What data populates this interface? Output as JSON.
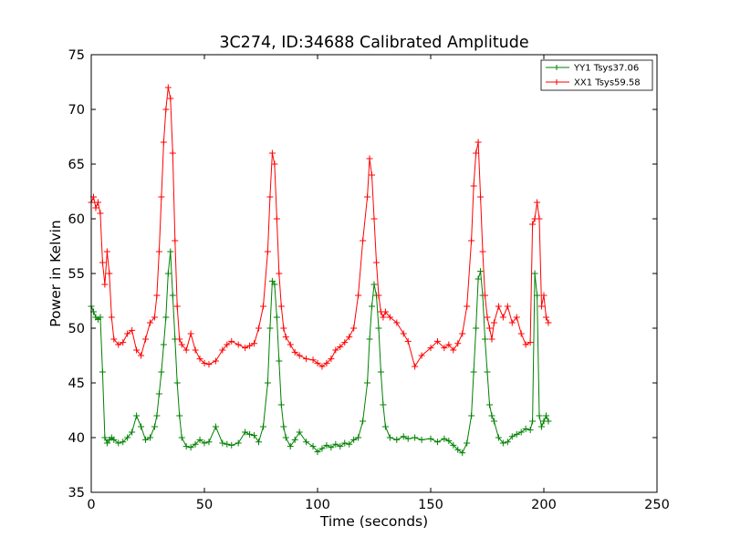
{
  "chart_data": {
    "type": "line",
    "title": "3C274, ID:34688 Calibrated Amplitude",
    "xlabel": "Time (seconds)",
    "ylabel": "Power in Kelvin",
    "xlim": [
      0,
      250
    ],
    "ylim": [
      35,
      75
    ],
    "xticks": [
      "0",
      "50",
      "100",
      "150",
      "200",
      "250"
    ],
    "yticks": [
      "35",
      "40",
      "45",
      "50",
      "55",
      "60",
      "65",
      "70",
      "75"
    ],
    "grid": false,
    "legend_position": "top-right",
    "marker": "+",
    "series": [
      {
        "name": "YY1 Tsys37.06",
        "color": "#008000",
        "x": [
          0,
          1,
          2,
          3,
          4,
          5,
          6,
          7,
          8,
          9,
          10,
          12,
          14,
          16,
          18,
          20,
          22,
          24,
          26,
          28,
          29,
          30,
          31,
          32,
          33,
          34,
          35,
          36,
          37,
          38,
          39,
          40,
          42,
          44,
          46,
          48,
          50,
          52,
          55,
          58,
          60,
          62,
          65,
          68,
          70,
          72,
          74,
          76,
          78,
          79,
          80,
          81,
          82,
          83,
          84,
          85,
          86,
          88,
          90,
          92,
          95,
          98,
          100,
          102,
          104,
          106,
          108,
          110,
          112,
          114,
          116,
          118,
          120,
          122,
          123,
          124,
          125,
          126,
          127,
          128,
          129,
          130,
          132,
          135,
          138,
          140,
          143,
          146,
          150,
          153,
          156,
          158,
          160,
          162,
          164,
          166,
          168,
          169,
          170,
          171,
          172,
          173,
          174,
          175,
          176,
          177,
          178,
          180,
          182,
          184,
          186,
          188,
          190,
          192,
          194,
          195,
          196,
          197,
          198,
          199,
          200,
          201,
          202
        ],
        "y": [
          52,
          51.5,
          51,
          50.8,
          51,
          46,
          40,
          39.5,
          39.8,
          40,
          39.8,
          39.5,
          39.6,
          40,
          40.5,
          42,
          41,
          39.8,
          40,
          41,
          42,
          44,
          46,
          48.5,
          51,
          55,
          57,
          53,
          49,
          45,
          42,
          40,
          39.2,
          39.1,
          39.4,
          39.8,
          39.5,
          39.6,
          41,
          39.5,
          39.4,
          39.3,
          39.5,
          40.5,
          40.3,
          40.2,
          39.6,
          41,
          45,
          50,
          54.3,
          54,
          51,
          47,
          43,
          41,
          40,
          39.2,
          39.8,
          40.5,
          39.6,
          39.2,
          38.7,
          39,
          39.3,
          39.1,
          39.4,
          39.2,
          39.5,
          39.4,
          39.8,
          40,
          41.5,
          45,
          49,
          52,
          54,
          53,
          50,
          46,
          43,
          41,
          40,
          39.8,
          40.1,
          39.9,
          40,
          39.8,
          39.9,
          39.6,
          39.9,
          39.7,
          39.3,
          38.9,
          38.6,
          39.5,
          42,
          46,
          50,
          54.5,
          55.2,
          53,
          49,
          46,
          43,
          42,
          41.5,
          40,
          39.5,
          39.6,
          40.1,
          40.3,
          40.5,
          40.8,
          40.7,
          41.5,
          55,
          53,
          42,
          41,
          41.5,
          42,
          41.5
        ]
      },
      {
        "name": "XX1 Tsys59.58",
        "color": "#ff0000",
        "x": [
          0,
          1,
          2,
          3,
          4,
          5,
          6,
          7,
          8,
          9,
          10,
          12,
          14,
          16,
          18,
          20,
          22,
          24,
          26,
          28,
          29,
          30,
          31,
          32,
          33,
          34,
          35,
          36,
          37,
          38,
          39,
          40,
          42,
          44,
          46,
          48,
          50,
          52,
          55,
          58,
          60,
          62,
          65,
          68,
          70,
          72,
          74,
          76,
          78,
          79,
          80,
          81,
          82,
          83,
          84,
          85,
          86,
          88,
          90,
          92,
          95,
          98,
          100,
          102,
          104,
          106,
          108,
          110,
          112,
          114,
          116,
          118,
          120,
          122,
          123,
          124,
          125,
          126,
          127,
          128,
          129,
          130,
          132,
          135,
          138,
          140,
          143,
          146,
          150,
          153,
          156,
          158,
          160,
          162,
          164,
          166,
          168,
          169,
          170,
          171,
          172,
          173,
          174,
          175,
          176,
          177,
          178,
          180,
          182,
          184,
          186,
          188,
          190,
          192,
          194,
          195,
          196,
          197,
          198,
          199,
          200,
          201,
          202
        ],
        "y": [
          61.5,
          62,
          61,
          61.5,
          60.5,
          56,
          54,
          57,
          55,
          51,
          49,
          48.5,
          48.7,
          49.5,
          49.8,
          48,
          47.5,
          49,
          50.5,
          51,
          53,
          57,
          62,
          67,
          70,
          72,
          71,
          66,
          58,
          52,
          49,
          48.5,
          48,
          49.5,
          48,
          47.2,
          46.8,
          46.7,
          47,
          48,
          48.5,
          48.8,
          48.5,
          48.2,
          48.4,
          48.6,
          50,
          52,
          57,
          62,
          66,
          65,
          60,
          55,
          52,
          50,
          49.2,
          48.5,
          47.8,
          47.5,
          47.2,
          47.1,
          46.8,
          46.5,
          46.8,
          47.2,
          48,
          48.3,
          48.7,
          49.2,
          50,
          53,
          58,
          62,
          65.5,
          64,
          60,
          56,
          53,
          51.5,
          51,
          51.5,
          51,
          50.5,
          49.5,
          48.8,
          46.5,
          47.5,
          48.2,
          48.8,
          48.2,
          48.5,
          48,
          48.6,
          49.5,
          52,
          58,
          63,
          66,
          67,
          62,
          57,
          53,
          51,
          50,
          49,
          50.5,
          52,
          51,
          52,
          50.5,
          51,
          49.5,
          48.5,
          48.7,
          59.5,
          60,
          61.5,
          60,
          52,
          53,
          51,
          50.5
        ]
      }
    ]
  }
}
